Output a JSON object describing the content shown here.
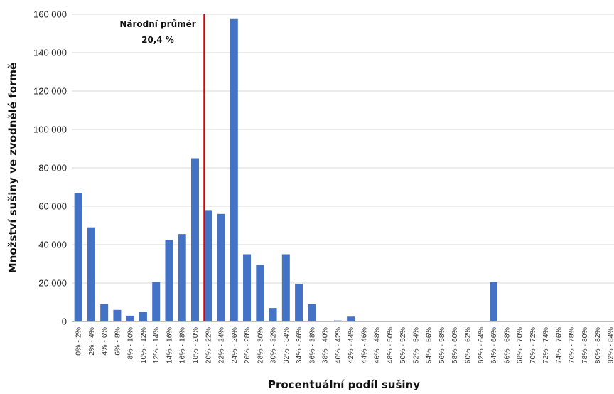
{
  "chart_data": {
    "type": "bar",
    "xlabel": "Procentuální podíl sušiny",
    "ylabel": "Množství sušiny ve zvodnělé formě",
    "ylim": [
      0,
      160000
    ],
    "yticks": [
      0,
      20000,
      40000,
      60000,
      80000,
      100000,
      120000,
      140000,
      160000
    ],
    "ytick_labels": [
      "0",
      "20 000",
      "40 000",
      "60 000",
      "80 000",
      "100 000",
      "120 000",
      "140 000",
      "160 000"
    ],
    "grid": true,
    "bar_color": "#4472c4",
    "categories": [
      "0% - 2%",
      "2% - 4%",
      "4% - 6%",
      "6% - 8%",
      "8% - 10%",
      "10% - 12%",
      "12% - 14%",
      "14% - 16%",
      "16% - 18%",
      "18% - 20%",
      "20% - 22%",
      "22% - 24%",
      "24% - 26%",
      "26% - 28%",
      "28% - 30%",
      "30% - 32%",
      "32% - 34%",
      "34% - 36%",
      "36% - 38%",
      "38% - 40%",
      "40% - 42%",
      "42% - 44%",
      "44% - 46%",
      "46% - 48%",
      "48% - 50%",
      "50% - 52%",
      "52% - 54%",
      "54% - 56%",
      "56% - 58%",
      "58% - 60%",
      "60% - 62%",
      "62% - 64%",
      "64% - 66%",
      "66% - 68%",
      "68% - 70%",
      "70% - 72%",
      "72% - 74%",
      "74% - 76%",
      "76% - 78%",
      "78% - 80%",
      "80% - 82%",
      "82% - 84%"
    ],
    "values": [
      67000,
      49000,
      9000,
      6000,
      3000,
      5000,
      20500,
      42500,
      45500,
      85000,
      58000,
      56000,
      157500,
      35000,
      29500,
      7000,
      35000,
      19500,
      9000,
      0,
      500,
      2500,
      0,
      0,
      0,
      0,
      0,
      0,
      0,
      0,
      0,
      0,
      20500,
      0,
      0,
      0,
      0,
      0,
      0,
      0,
      0,
      0
    ],
    "reference_line": {
      "x": 20.4,
      "color": "#e00000",
      "label_line1": "Národní průměr",
      "label_line2": "20,4 %"
    }
  }
}
